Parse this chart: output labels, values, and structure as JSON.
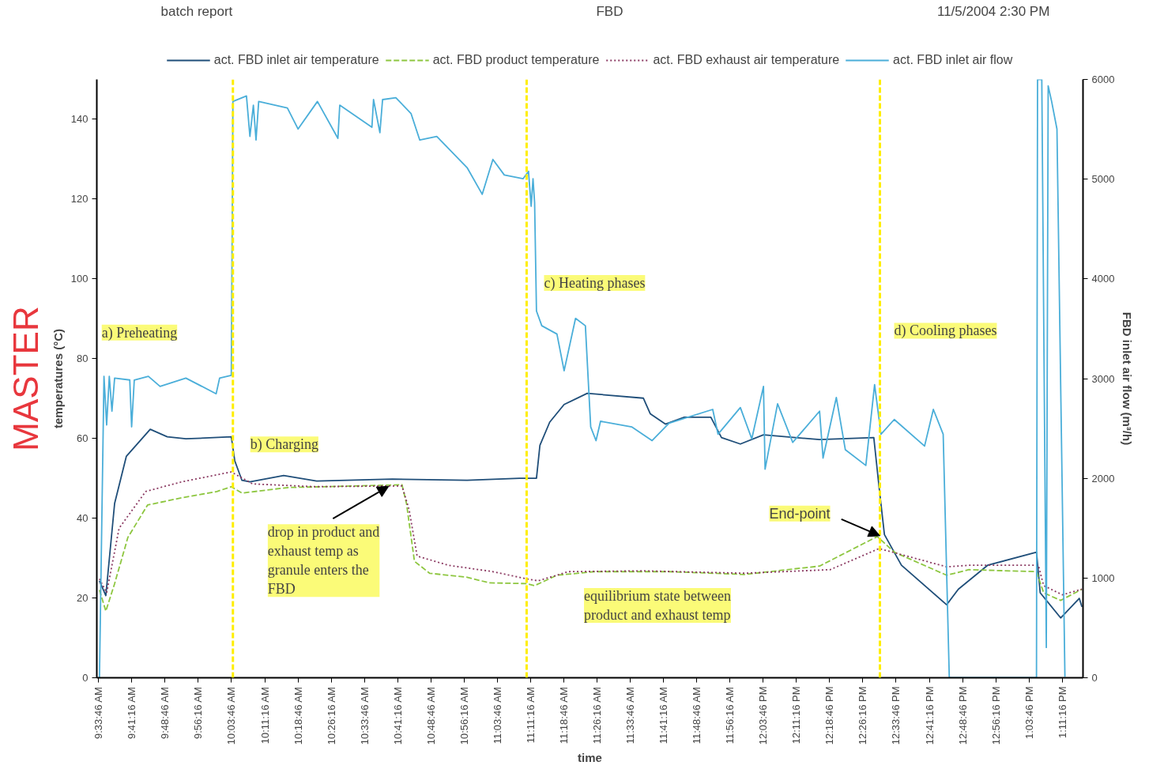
{
  "chart_data": {
    "type": "line",
    "title": "FBD",
    "xlabel": "time",
    "ylabel": "temperatures (°C)",
    "y2label": "FBD inlet air flow (m³/h)",
    "annotations": [
      "batch report",
      "11/5/2004  2:30 PM",
      "MASTER",
      "a) Preheating",
      "equilibrium state between\nproduct and exhaust temp",
      {
        "text": "drop in product and\nexhaust temp as\ngranule enters the\nFBD",
        "x": 10.654,
        "y": 48.0
      },
      {
        "text": "End-point",
        "x": 12.502,
        "y": 35.6
      }
    ],
    "legend": "top",
    "xlim": [
      9.556,
      13.266
    ],
    "ylim": [
      0,
      150
    ],
    "y2lim": [
      0,
      6000
    ],
    "yticks": [
      0,
      20,
      40,
      60,
      80,
      100,
      120,
      140
    ],
    "y2ticks": [
      0,
      1000,
      2000,
      3000,
      4000,
      5000,
      6000
    ],
    "xticks": [
      {
        "value": 9.5628,
        "label": "9:33:46 AM"
      },
      {
        "value": 9.6878,
        "label": "9:41:16 AM"
      },
      {
        "value": 9.8128,
        "label": "9:48:46 AM"
      },
      {
        "value": 9.9378,
        "label": "9:56:16 AM"
      },
      {
        "value": 10.0628,
        "label": "10:03:46 AM"
      },
      {
        "value": 10.1878,
        "label": "10:11:16 AM"
      },
      {
        "value": 10.3128,
        "label": "10:18:46 AM"
      },
      {
        "value": 10.4378,
        "label": "10:26:16 AM"
      },
      {
        "value": 10.5628,
        "label": "10:33:46 AM"
      },
      {
        "value": 10.6878,
        "label": "10:41:16 AM"
      },
      {
        "value": 10.8128,
        "label": "10:48:46 AM"
      },
      {
        "value": 10.9378,
        "label": "10:56:16 AM"
      },
      {
        "value": 11.0628,
        "label": "11:03:46 AM"
      },
      {
        "value": 11.1878,
        "label": "11:11:16 AM"
      },
      {
        "value": 11.3128,
        "label": "11:18:46 AM"
      },
      {
        "value": 11.4378,
        "label": "11:26:16 AM"
      },
      {
        "value": 11.5628,
        "label": "11:33:46 AM"
      },
      {
        "value": 11.6878,
        "label": "11:41:16 AM"
      },
      {
        "value": 11.8128,
        "label": "11:48:46 AM"
      },
      {
        "value": 11.9378,
        "label": "11:56:16 AM"
      },
      {
        "value": 12.0628,
        "label": "12:03:46 PM"
      },
      {
        "value": 12.1878,
        "label": "12:11:16 PM"
      },
      {
        "value": 12.3128,
        "label": "12:18:46 PM"
      },
      {
        "value": 12.4378,
        "label": "12:26:16 PM"
      },
      {
        "value": 12.5628,
        "label": "12:33:46 PM"
      },
      {
        "value": 12.6878,
        "label": "12:41:16 PM"
      },
      {
        "value": 12.8128,
        "label": "12:48:46 PM"
      },
      {
        "value": 12.9378,
        "label": "12:56:16 PM"
      },
      {
        "value": 13.0628,
        "label": "1:03:46 PM"
      },
      {
        "value": 13.1878,
        "label": "1:11:16 PM"
      }
    ],
    "ref_lines": [
      {
        "axis": "x",
        "value": 10.068,
        "label": "b) Charging",
        "color": "#ffee00",
        "line_style": "dashed"
      },
      {
        "axis": "x",
        "value": 11.173,
        "label": "c) Heating phases",
        "color": "#ffee00",
        "line_style": "dashed"
      },
      {
        "axis": "x",
        "value": 12.502,
        "label": "d) Cooling phases",
        "color": "#ffee00",
        "line_style": "dashed"
      }
    ],
    "series": [
      {
        "name": "act. FBD inlet air temperature",
        "color": "#1f4e79",
        "line_style": "solid",
        "x": [
          9.566,
          9.59,
          9.623,
          9.667,
          9.757,
          9.821,
          9.891,
          10.062,
          10.075,
          10.102,
          10.132,
          10.259,
          10.383,
          10.668,
          10.949,
          11.146,
          11.21,
          11.223,
          11.26,
          11.314,
          11.401,
          11.612,
          11.638,
          11.695,
          11.766,
          11.866,
          11.906,
          11.977,
          12.064,
          12.275,
          12.479,
          12.499,
          12.519,
          12.583,
          12.753,
          12.797,
          12.907,
          13.091,
          13.105,
          13.182,
          13.252,
          13.262
        ],
        "values": [
          24.3,
          20.6,
          43.7,
          55.5,
          62.3,
          60.4,
          59.9,
          60.4,
          54.4,
          49.5,
          49.1,
          50.7,
          49.3,
          49.8,
          49.5,
          50.0,
          50.0,
          58.3,
          64.1,
          68.5,
          71.3,
          70.1,
          66.2,
          63.6,
          65.3,
          65.3,
          60.2,
          58.6,
          60.9,
          59.7,
          60.2,
          47.7,
          35.9,
          28.2,
          18.3,
          22.2,
          28.2,
          31.5,
          21.3,
          15.0,
          19.9,
          17.8
        ]
      },
      {
        "name": "act. FBD product temperature",
        "color": "#8dc63f",
        "line_style": "dashed",
        "x": [
          9.566,
          9.59,
          9.623,
          9.673,
          9.747,
          9.874,
          10.008,
          10.062,
          10.102,
          10.276,
          10.544,
          10.704,
          10.721,
          10.751,
          10.808,
          10.949,
          11.032,
          11.173,
          11.203,
          11.287,
          11.428,
          11.709,
          11.993,
          12.275,
          12.492,
          12.556,
          12.753,
          12.837,
          13.091,
          13.118,
          13.182,
          13.262
        ],
        "values": [
          22.0,
          16.7,
          23.6,
          35.2,
          43.3,
          45.1,
          46.7,
          47.9,
          46.3,
          47.7,
          48.1,
          48.4,
          43.7,
          29.2,
          26.2,
          25.2,
          23.8,
          23.6,
          23.1,
          25.7,
          26.6,
          26.6,
          25.9,
          28.0,
          35.4,
          31.5,
          25.7,
          27.1,
          26.6,
          21.3,
          19.4,
          22.2
        ]
      },
      {
        "name": "act. FBD exhaust air temperature",
        "color": "#8b3a62",
        "line_style": "dotted",
        "x": [
          9.566,
          9.593,
          9.64,
          9.74,
          9.874,
          10.062,
          10.142,
          10.376,
          10.704,
          10.731,
          10.761,
          10.879,
          11.046,
          11.173,
          11.216,
          11.33,
          11.612,
          11.993,
          12.315,
          12.499,
          12.753,
          12.837,
          13.098,
          13.118,
          13.188,
          13.262
        ],
        "values": [
          24.8,
          21.3,
          37.5,
          46.7,
          49.1,
          51.6,
          48.6,
          47.9,
          48.1,
          42.1,
          30.5,
          28.2,
          26.6,
          24.8,
          24.3,
          26.6,
          26.8,
          26.2,
          27.1,
          32.4,
          27.8,
          28.2,
          28.2,
          23.1,
          20.8,
          22.2
        ]
      },
      {
        "name": "act. FBD inlet air flow",
        "color": "#4aaed9",
        "line_style": "solid",
        "axis": "y2",
        "x": [
          9.566,
          9.583,
          9.593,
          9.603,
          9.613,
          9.623,
          9.68,
          9.687,
          9.697,
          9.75,
          9.794,
          9.891,
          10.005,
          10.018,
          10.062,
          10.068,
          10.119,
          10.132,
          10.145,
          10.155,
          10.165,
          10.273,
          10.313,
          10.386,
          10.463,
          10.47,
          10.591,
          10.597,
          10.621,
          10.631,
          10.681,
          10.738,
          10.771,
          10.835,
          10.949,
          11.006,
          11.046,
          11.089,
          11.16,
          11.18,
          11.19,
          11.197,
          11.203,
          11.21,
          11.23,
          11.287,
          11.314,
          11.357,
          11.394,
          11.414,
          11.434,
          11.451,
          11.568,
          11.645,
          11.709,
          11.873,
          11.893,
          11.977,
          12.02,
          12.064,
          12.07,
          12.117,
          12.174,
          12.275,
          12.288,
          12.338,
          12.372,
          12.449,
          12.482,
          12.506,
          12.556,
          12.67,
          12.703,
          12.74,
          12.763,
          13.091,
          13.095,
          13.111,
          13.128,
          13.135,
          13.148,
          13.168,
          13.198
        ],
        "values": [
          0,
          3023,
          2535,
          3023,
          2673,
          3005,
          2986,
          2516,
          2986,
          3023,
          2922,
          3005,
          2848,
          3005,
          3032,
          5779,
          5834,
          5429,
          5742,
          5392,
          5779,
          5714,
          5503,
          5779,
          5410,
          5742,
          5521,
          5798,
          5466,
          5798,
          5816,
          5659,
          5392,
          5429,
          5116,
          4848,
          5198,
          5042,
          5005,
          5079,
          4728,
          5005,
          4765,
          3678,
          3530,
          3447,
          3078,
          3604,
          3530,
          2516,
          2378,
          2572,
          2516,
          2378,
          2553,
          2691,
          2442,
          2710,
          2396,
          2922,
          2092,
          2747,
          2360,
          2673,
          2203,
          2811,
          2286,
          2129,
          2940,
          2442,
          2590,
          2323,
          2691,
          2442,
          0,
          0,
          6000,
          6000,
          304,
          5936,
          5779,
          5503,
          9
        ]
      }
    ]
  }
}
